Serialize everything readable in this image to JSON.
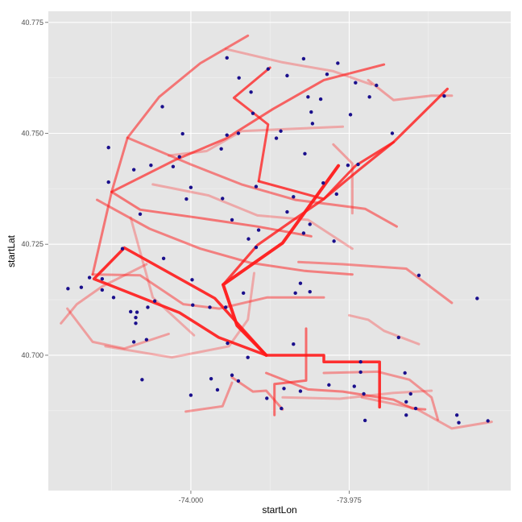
{
  "chart_data": {
    "type": "line",
    "xlabel": "startLon",
    "ylabel": "startLat",
    "xlim": [
      -74.0225,
      -73.9495
    ],
    "ylim": [
      40.6695,
      40.7775
    ],
    "x_ticks": [
      {
        "value": -74.0,
        "label": "-74.000"
      },
      {
        "value": -73.975,
        "label": "-73.975"
      }
    ],
    "y_ticks": [
      {
        "value": 40.7,
        "label": "40.700"
      },
      {
        "value": 40.725,
        "label": "40.725"
      },
      {
        "value": 40.75,
        "label": "40.750"
      },
      {
        "value": 40.775,
        "label": "40.775"
      }
    ],
    "grid": true,
    "legend": "none",
    "colors": {
      "panel": "#e5e5e5",
      "grid_major": "#ffffff",
      "grid_minor": "#f2f2f2",
      "route": "#ff1a1a",
      "station": "#1a0f8c"
    },
    "routes": [
      {
        "alpha": 0.95,
        "width": 4.0,
        "points": [
          [
            -73.9881,
            40.7
          ],
          [
            -73.9927,
            40.7067
          ],
          [
            -73.9949,
            40.7159
          ],
          [
            -73.9855,
            40.7253
          ],
          [
            -73.9767,
            40.7427
          ]
        ]
      },
      {
        "alpha": 0.9,
        "width": 3.5,
        "points": [
          [
            -73.9881,
            40.7
          ],
          [
            -73.979,
            40.7
          ],
          [
            -73.979,
            40.6985
          ],
          [
            -73.9702,
            40.6985
          ],
          [
            -73.9702,
            40.6883
          ]
        ]
      },
      {
        "alpha": 0.9,
        "width": 3.5,
        "points": [
          [
            -73.9881,
            40.7
          ],
          [
            -73.9962,
            40.7128
          ],
          [
            -74.0105,
            40.7242
          ],
          [
            -74.0153,
            40.7172
          ],
          [
            -74.0018,
            40.7096
          ],
          [
            -73.9956,
            40.704
          ],
          [
            -73.9881,
            40.7
          ]
        ]
      },
      {
        "alpha": 0.8,
        "width": 3.2,
        "points": [
          [
            -73.9949,
            40.7159
          ],
          [
            -73.9895,
            40.7248
          ],
          [
            -73.9843,
            40.73
          ],
          [
            -73.979,
            40.7352
          ],
          [
            -73.9735,
            40.7417
          ],
          [
            -73.968,
            40.748
          ],
          [
            -73.9595,
            40.76
          ]
        ]
      },
      {
        "alpha": 0.75,
        "width": 3.0,
        "points": [
          [
            -73.9893,
            40.7392
          ],
          [
            -73.9878,
            40.752
          ],
          [
            -73.9932,
            40.758
          ],
          [
            -73.9875,
            40.7648
          ]
        ]
      },
      {
        "alpha": 0.8,
        "width": 3.0,
        "points": [
          [
            -73.9893,
            40.7392
          ],
          [
            -73.979,
            40.7352
          ],
          [
            -73.974,
            40.7427
          ],
          [
            -73.968,
            40.748
          ]
        ]
      },
      {
        "alpha": 0.65,
        "width": 3.0,
        "points": [
          [
            -74.0125,
            40.7368
          ],
          [
            -74.0025,
            40.744
          ],
          [
            -73.9945,
            40.7488
          ],
          [
            -73.987,
            40.7555
          ],
          [
            -73.979,
            40.762
          ],
          [
            -73.9695,
            40.7655
          ]
        ]
      },
      {
        "alpha": 0.55,
        "width": 3.0,
        "points": [
          [
            -74.0155,
            40.7182
          ],
          [
            -74.0125,
            40.7368
          ],
          [
            -74.01,
            40.749
          ],
          [
            -74.005,
            40.7582
          ],
          [
            -73.9985,
            40.7658
          ],
          [
            -73.991,
            40.772
          ]
        ]
      },
      {
        "alpha": 0.5,
        "width": 3.0,
        "points": [
          [
            -74.01,
            40.749
          ],
          [
            -74.0,
            40.743
          ],
          [
            -73.992,
            40.7385
          ],
          [
            -73.9835,
            40.735
          ],
          [
            -73.9725,
            40.733
          ],
          [
            -73.9675,
            40.729
          ]
        ]
      },
      {
        "alpha": 0.55,
        "width": 3.0,
        "points": [
          [
            -74.0125,
            40.7368
          ],
          [
            -74.008,
            40.7328
          ],
          [
            -73.999,
            40.731
          ],
          [
            -73.9895,
            40.729
          ],
          [
            -73.981,
            40.7268
          ]
        ]
      },
      {
        "alpha": 0.5,
        "width": 3.0,
        "points": [
          [
            -74.0148,
            40.735
          ],
          [
            -74.0065,
            40.7285
          ],
          [
            -73.9985,
            40.724
          ],
          [
            -73.9905,
            40.7208
          ],
          [
            -73.982,
            40.719
          ],
          [
            -73.9745,
            40.7182
          ]
        ]
      },
      {
        "alpha": 0.45,
        "width": 3.0,
        "points": [
          [
            -74.0155,
            40.7182
          ],
          [
            -74.008,
            40.718
          ],
          [
            -74.0012,
            40.7115
          ],
          [
            -73.9955,
            40.7105
          ],
          [
            -73.988,
            40.713
          ],
          [
            -73.979,
            40.713
          ]
        ]
      },
      {
        "alpha": 0.45,
        "width": 3.0,
        "points": [
          [
            -73.983,
            40.721
          ],
          [
            -73.976,
            40.7205
          ],
          [
            -73.966,
            40.7195
          ],
          [
            -73.9588,
            40.7118
          ]
        ]
      },
      {
        "alpha": 0.6,
        "width": 3.0,
        "points": [
          [
            -73.9818,
            40.706
          ],
          [
            -73.9818,
            40.6943
          ],
          [
            -73.9868,
            40.6935
          ],
          [
            -73.9868,
            40.6865
          ]
        ]
      },
      {
        "alpha": 0.5,
        "width": 3.0,
        "points": [
          [
            -73.9881,
            40.696
          ],
          [
            -73.9815,
            40.6923
          ],
          [
            -73.976,
            40.6918
          ],
          [
            -73.968,
            40.69
          ],
          [
            -73.965,
            40.688
          ],
          [
            -73.963,
            40.6878
          ]
        ]
      },
      {
        "alpha": 0.4,
        "width": 3.0,
        "points": [
          [
            -73.9935,
            40.6938
          ],
          [
            -73.995,
            40.6885
          ],
          [
            -74.0008,
            40.6873
          ]
        ]
      },
      {
        "alpha": 0.45,
        "width": 3.0,
        "points": [
          [
            -73.9935,
            40.695
          ],
          [
            -73.9902,
            40.6918
          ],
          [
            -73.9881,
            40.692
          ],
          [
            -73.9855,
            40.6878
          ]
        ]
      },
      {
        "alpha": 0.4,
        "width": 3.0,
        "points": [
          [
            -73.979,
            40.696
          ],
          [
            -73.9705,
            40.6963
          ],
          [
            -73.9655,
            40.6945
          ],
          [
            -73.962,
            40.6905
          ],
          [
            -73.961,
            40.6855
          ]
        ]
      },
      {
        "alpha": 0.35,
        "width": 3.0,
        "points": [
          [
            -73.973,
            40.6905
          ],
          [
            -73.9645,
            40.688
          ],
          [
            -73.9588,
            40.6835
          ],
          [
            -73.9525,
            40.685
          ]
        ]
      },
      {
        "alpha": 0.35,
        "width": 3.0,
        "points": [
          [
            -74.0205,
            40.7072
          ],
          [
            -74.018,
            40.7115
          ],
          [
            -74.014,
            40.7155
          ],
          [
            -74.007,
            40.7205
          ]
        ]
      },
      {
        "alpha": 0.35,
        "width": 3.0,
        "points": [
          [
            -74.0195,
            40.7105
          ],
          [
            -74.0155,
            40.703
          ],
          [
            -74.0105,
            40.7015
          ],
          [
            -74.0035,
            40.7048
          ]
        ]
      },
      {
        "alpha": 0.35,
        "width": 3.0,
        "points": [
          [
            -73.9745,
            40.732
          ],
          [
            -73.9745,
            40.7432
          ],
          [
            -73.9775,
            40.7475
          ]
        ]
      },
      {
        "alpha": 0.35,
        "width": 3.0,
        "points": [
          [
            -73.972,
            40.762
          ],
          [
            -73.968,
            40.7575
          ],
          [
            -73.962,
            40.7585
          ],
          [
            -73.9588,
            40.7585
          ]
        ]
      },
      {
        "alpha": 0.3,
        "width": 3.0,
        "points": [
          [
            -73.9945,
            40.769
          ],
          [
            -73.9855,
            40.766
          ],
          [
            -73.9775,
            40.764
          ],
          [
            -73.9715,
            40.761
          ]
        ]
      },
      {
        "alpha": 0.3,
        "width": 3.0,
        "points": [
          [
            -74.0035,
            40.745
          ],
          [
            -73.9975,
            40.746
          ],
          [
            -73.992,
            40.7505
          ],
          [
            -73.9842,
            40.751
          ],
          [
            -73.976,
            40.7515
          ]
        ]
      },
      {
        "alpha": 0.3,
        "width": 3.0,
        "points": [
          [
            -74.006,
            40.7385
          ],
          [
            -73.9972,
            40.736
          ],
          [
            -73.9895,
            40.7315
          ],
          [
            -73.9815,
            40.7305
          ],
          [
            -73.9745,
            40.724
          ]
        ]
      },
      {
        "alpha": 0.3,
        "width": 3.0,
        "points": [
          [
            -73.9855,
            40.6905
          ],
          [
            -73.9765,
            40.6902
          ],
          [
            -73.968,
            40.6915
          ],
          [
            -73.962,
            40.692
          ]
        ]
      },
      {
        "alpha": 0.3,
        "width": 3.0,
        "points": [
          [
            -73.964,
            40.7025
          ],
          [
            -73.9695,
            40.7055
          ],
          [
            -73.972,
            40.708
          ],
          [
            -73.975,
            40.709
          ]
        ]
      },
      {
        "alpha": 0.3,
        "width": 3.0,
        "points": [
          [
            -73.99,
            40.7185
          ],
          [
            -73.991,
            40.708
          ],
          [
            -73.994,
            40.702
          ],
          [
            -74.003,
            40.6995
          ],
          [
            -74.0135,
            40.702
          ]
        ]
      },
      {
        "alpha": 0.3,
        "width": 3.0,
        "points": [
          [
            -74.0095,
            40.731
          ],
          [
            -74.006,
            40.713
          ],
          [
            -73.9995,
            40.7045
          ]
        ]
      }
    ],
    "stations": [
      [
        -73.9943,
        40.767
      ],
      [
        -73.9924,
        40.7625
      ],
      [
        -73.9878,
        40.7645
      ],
      [
        -73.9848,
        40.763
      ],
      [
        -73.9822,
        40.7668
      ],
      [
        -73.9768,
        40.7658
      ],
      [
        -73.9785,
        40.7633
      ],
      [
        -73.974,
        40.7614
      ],
      [
        -73.9707,
        40.7608
      ],
      [
        -73.9718,
        40.7582
      ],
      [
        -73.96,
        40.7584
      ],
      [
        -73.9815,
        40.7582
      ],
      [
        -73.9795,
        40.7577
      ],
      [
        -73.9905,
        40.7593
      ],
      [
        -73.9902,
        40.7545
      ],
      [
        -73.981,
        40.7548
      ],
      [
        -73.9808,
        40.7522
      ],
      [
        -73.9748,
        40.7542
      ],
      [
        -73.9682,
        40.75
      ],
      [
        -73.9736,
        40.743
      ],
      [
        -73.9752,
        40.7428
      ],
      [
        -73.9858,
        40.7505
      ],
      [
        -73.9925,
        40.75
      ],
      [
        -73.9943,
        40.7496
      ],
      [
        -73.9865,
        40.7489
      ],
      [
        -74.0013,
        40.7499
      ],
      [
        -74.0045,
        40.756
      ],
      [
        -73.982,
        40.7454
      ],
      [
        -74.0018,
        40.7447
      ],
      [
        -74.0063,
        40.7428
      ],
      [
        -74.009,
        40.7418
      ],
      [
        -73.9897,
        40.738
      ],
      [
        -73.9838,
        40.7357
      ],
      [
        -73.9791,
        40.7388
      ],
      [
        -73.977,
        40.7363
      ],
      [
        -73.9848,
        40.7323
      ],
      [
        -73.9812,
        40.7295
      ],
      [
        -73.9822,
        40.7275
      ],
      [
        -73.9774,
        40.7257
      ],
      [
        -73.9893,
        40.7282
      ],
      [
        -73.9935,
        40.7305
      ],
      [
        -73.9909,
        40.7262
      ],
      [
        -73.9897,
        40.7243
      ],
      [
        -73.995,
        40.7353
      ],
      [
        -73.9952,
        40.7465
      ],
      [
        -74.0,
        40.7378
      ],
      [
        -74.0007,
        40.7352
      ],
      [
        -74.0028,
        40.7425
      ],
      [
        -74.013,
        40.7468
      ],
      [
        -74.013,
        40.739
      ],
      [
        -74.008,
        40.7318
      ],
      [
        -74.0108,
        40.724
      ],
      [
        -74.0043,
        40.7218
      ],
      [
        -73.9998,
        40.717
      ],
      [
        -73.9827,
        40.7162
      ],
      [
        -73.9812,
        40.7143
      ],
      [
        -73.9835,
        40.714
      ],
      [
        -73.9917,
        40.714
      ],
      [
        -74.0095,
        40.7098
      ],
      [
        -74.0122,
        40.713
      ],
      [
        -74.0173,
        40.7153
      ],
      [
        -74.0194,
        40.715
      ],
      [
        -74.014,
        40.7172
      ],
      [
        -74.014,
        40.7147
      ],
      [
        -74.0057,
        40.7122
      ],
      [
        -74.0068,
        40.7108
      ],
      [
        -74.0085,
        40.7097
      ],
      [
        -74.0087,
        40.7085
      ],
      [
        -74.0087,
        40.7072
      ],
      [
        -74.007,
        40.7035
      ],
      [
        -74.009,
        40.703
      ],
      [
        -73.9997,
        40.7113
      ],
      [
        -73.997,
        40.7108
      ],
      [
        -73.9945,
        40.7108
      ],
      [
        -73.9942,
        40.7027
      ],
      [
        -73.991,
        40.6995
      ],
      [
        -73.9838,
        40.7025
      ],
      [
        -73.9935,
        40.6955
      ],
      [
        -73.9782,
        40.6933
      ],
      [
        -73.9853,
        40.6925
      ],
      [
        -73.9742,
        40.693
      ],
      [
        -73.9732,
        40.6962
      ],
      [
        -73.9727,
        40.6913
      ],
      [
        -73.9732,
        40.6985
      ],
      [
        -73.9662,
        40.696
      ],
      [
        -73.9653,
        40.6913
      ],
      [
        -73.966,
        40.6895
      ],
      [
        -73.9645,
        40.688
      ],
      [
        -73.966,
        40.6865
      ],
      [
        -73.958,
        40.6865
      ],
      [
        -73.9577,
        40.6848
      ],
      [
        -73.9531,
        40.6852
      ],
      [
        -73.9548,
        40.7128
      ],
      [
        -74.0,
        40.691
      ],
      [
        -74.0077,
        40.6945
      ],
      [
        -73.9968,
        40.6947
      ],
      [
        -73.9958,
        40.6922
      ],
      [
        -73.9925,
        40.6942
      ],
      [
        -73.988,
        40.6903
      ],
      [
        -73.9857,
        40.688
      ],
      [
        -73.9827,
        40.6919
      ],
      [
        -73.9725,
        40.6853
      ],
      [
        -73.964,
        40.718
      ],
      [
        -74.016,
        40.7175
      ],
      [
        -73.9672,
        40.704
      ]
    ]
  }
}
